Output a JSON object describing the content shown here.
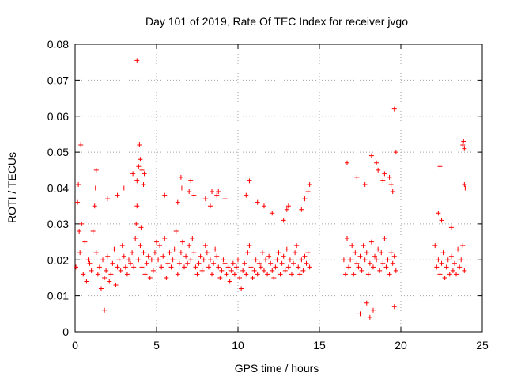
{
  "chart_data": {
    "type": "scatter",
    "title": "Day 101 of 2019, Rate Of TEC Index for receiver jvgo",
    "xlabel": "GPS time / hours",
    "ylabel": "ROTI / TECUs",
    "xlim": [
      0,
      25
    ],
    "ylim": [
      0,
      0.08
    ],
    "x_ticks": [
      "0",
      "5",
      "10",
      "15",
      "20",
      "25"
    ],
    "y_ticks": [
      "0",
      "0.01",
      "0.02",
      "0.03",
      "0.04",
      "0.05",
      "0.06",
      "0.07",
      "0.08"
    ],
    "grid": true,
    "legend": "none",
    "marker": "plus",
    "color": "#ff0000",
    "series": [
      {
        "x": [
          0.05,
          0.15,
          0.25,
          0.3,
          0.4,
          0.5,
          0.6,
          0.7,
          0.8,
          0.9,
          1.0,
          1.1,
          1.2,
          1.3,
          1.4,
          1.5,
          1.6,
          1.7,
          1.8,
          1.9,
          2.0,
          2.1,
          2.2,
          2.3,
          2.4,
          2.5,
          2.6,
          2.7,
          2.8,
          2.9,
          3.0,
          3.1,
          3.2,
          3.3,
          3.4,
          3.5,
          3.6,
          3.7,
          3.75,
          3.8,
          3.9,
          4.0,
          4.05,
          4.1,
          4.2,
          4.3,
          4.4,
          4.5,
          4.6,
          4.7,
          4.8,
          4.9,
          5.0,
          5.1,
          5.2,
          5.3,
          5.4,
          5.5,
          5.6,
          5.7,
          5.8,
          5.9,
          6.0,
          6.1,
          6.2,
          6.3,
          6.4,
          6.5,
          6.6,
          6.7,
          6.8,
          6.9,
          7.0,
          7.1,
          7.2,
          7.3,
          7.4,
          7.5,
          7.6,
          7.7,
          7.8,
          7.9,
          8.0,
          8.1,
          8.2,
          8.3,
          8.4,
          8.5,
          8.6,
          8.7,
          8.8,
          8.9,
          9.0,
          9.1,
          9.2,
          9.3,
          9.4,
          9.5,
          9.6,
          9.7,
          9.8,
          9.9,
          10.0,
          10.1,
          10.2,
          10.3,
          10.4,
          10.5,
          10.6,
          10.7,
          10.8,
          10.9,
          11.0,
          11.1,
          11.2,
          11.3,
          11.4,
          11.5,
          11.6,
          11.7,
          11.8,
          11.9,
          12.0,
          12.1,
          12.2,
          12.3,
          12.4,
          12.5,
          12.6,
          12.7,
          12.8,
          12.9,
          13.0,
          13.1,
          13.2,
          13.3,
          13.4,
          13.5,
          13.6,
          13.7,
          13.8,
          13.9,
          14.0,
          14.1,
          14.2,
          14.3,
          14.4,
          16.5,
          16.6,
          16.7,
          16.8,
          16.9,
          17.0,
          17.1,
          17.2,
          17.3,
          17.4,
          17.5,
          17.6,
          17.7,
          17.8,
          17.9,
          18.0,
          18.1,
          18.2,
          18.3,
          18.4,
          18.5,
          18.6,
          18.7,
          18.8,
          18.9,
          19.0,
          19.1,
          19.2,
          19.3,
          19.4,
          19.5,
          19.6,
          19.7,
          22.1,
          22.2,
          22.3,
          22.4,
          22.5,
          22.6,
          22.7,
          22.8,
          22.9,
          23.0,
          23.1,
          23.2,
          23.3,
          23.4,
          23.5,
          23.6,
          23.7,
          23.8,
          23.9,
          0.2,
          0.35,
          1.3,
          1.25,
          2.0,
          2.6,
          3.0,
          3.55,
          3.8,
          3.9,
          3.95,
          4.0,
          4.1,
          4.2,
          4.25,
          5.5,
          6.3,
          6.5,
          6.55,
          7.0,
          7.1,
          7.3,
          8.0,
          8.3,
          8.4,
          8.7,
          8.8,
          9.2,
          10.5,
          10.7,
          11.2,
          11.6,
          12.1,
          12.8,
          13.0,
          13.1,
          13.9,
          14.1,
          14.3,
          14.4,
          16.7,
          17.3,
          17.8,
          18.2,
          18.5,
          18.6,
          18.9,
          19.0,
          19.3,
          19.4,
          19.5,
          19.6,
          19.7,
          22.3,
          22.5,
          22.4,
          23.1,
          23.8,
          23.85,
          23.9,
          23.95,
          23.9,
          1.8,
          17.5,
          17.9,
          18.1,
          18.3,
          19.6
        ],
        "y": [
          0.018,
          0.036,
          0.028,
          0.022,
          0.03,
          0.016,
          0.025,
          0.014,
          0.02,
          0.019,
          0.017,
          0.028,
          0.035,
          0.022,
          0.016,
          0.018,
          0.012,
          0.02,
          0.015,
          0.017,
          0.021,
          0.014,
          0.016,
          0.019,
          0.023,
          0.013,
          0.018,
          0.02,
          0.017,
          0.024,
          0.021,
          0.018,
          0.016,
          0.02,
          0.019,
          0.022,
          0.018,
          0.026,
          0.03,
          0.035,
          0.02,
          0.024,
          0.029,
          0.018,
          0.022,
          0.016,
          0.019,
          0.021,
          0.015,
          0.02,
          0.017,
          0.022,
          0.025,
          0.02,
          0.024,
          0.018,
          0.021,
          0.026,
          0.015,
          0.019,
          0.022,
          0.018,
          0.02,
          0.023,
          0.028,
          0.016,
          0.019,
          0.022,
          0.025,
          0.018,
          0.021,
          0.019,
          0.024,
          0.02,
          0.026,
          0.022,
          0.018,
          0.016,
          0.019,
          0.021,
          0.017,
          0.02,
          0.024,
          0.022,
          0.018,
          0.02,
          0.016,
          0.019,
          0.023,
          0.021,
          0.018,
          0.015,
          0.017,
          0.02,
          0.019,
          0.016,
          0.018,
          0.014,
          0.017,
          0.019,
          0.016,
          0.018,
          0.02,
          0.015,
          0.012,
          0.017,
          0.019,
          0.016,
          0.022,
          0.024,
          0.018,
          0.015,
          0.017,
          0.02,
          0.016,
          0.019,
          0.018,
          0.022,
          0.017,
          0.02,
          0.016,
          0.021,
          0.019,
          0.017,
          0.015,
          0.018,
          0.02,
          0.022,
          0.016,
          0.019,
          0.021,
          0.017,
          0.023,
          0.018,
          0.02,
          0.016,
          0.019,
          0.022,
          0.024,
          0.018,
          0.016,
          0.02,
          0.017,
          0.021,
          0.019,
          0.022,
          0.018,
          0.02,
          0.016,
          0.026,
          0.018,
          0.02,
          0.024,
          0.016,
          0.022,
          0.019,
          0.018,
          0.021,
          0.017,
          0.024,
          0.02,
          0.022,
          0.016,
          0.019,
          0.025,
          0.018,
          0.021,
          0.02,
          0.023,
          0.017,
          0.022,
          0.019,
          0.026,
          0.018,
          0.02,
          0.016,
          0.022,
          0.019,
          0.021,
          0.017,
          0.024,
          0.018,
          0.02,
          0.016,
          0.019,
          0.022,
          0.015,
          0.018,
          0.02,
          0.016,
          0.021,
          0.017,
          0.019,
          0.016,
          0.023,
          0.018,
          0.02,
          0.024,
          0.017,
          0.041,
          0.052,
          0.045,
          0.04,
          0.037,
          0.038,
          0.04,
          0.044,
          0.042,
          0.046,
          0.052,
          0.048,
          0.045,
          0.041,
          0.044,
          0.038,
          0.036,
          0.043,
          0.04,
          0.039,
          0.042,
          0.038,
          0.037,
          0.035,
          0.039,
          0.038,
          0.039,
          0.037,
          0.038,
          0.042,
          0.036,
          0.035,
          0.033,
          0.031,
          0.034,
          0.035,
          0.034,
          0.037,
          0.039,
          0.041,
          0.047,
          0.043,
          0.041,
          0.049,
          0.047,
          0.045,
          0.042,
          0.044,
          0.043,
          0.041,
          0.039,
          0.062,
          0.05,
          0.033,
          0.031,
          0.046,
          0.029,
          0.052,
          0.053,
          0.051,
          0.04,
          0.041,
          0.006,
          0.005,
          0.008,
          0.004,
          0.006,
          0.007
        ],
        "note_x": [
          3.8
        ],
        "note_y": [
          0.0755
        ]
      }
    ]
  }
}
